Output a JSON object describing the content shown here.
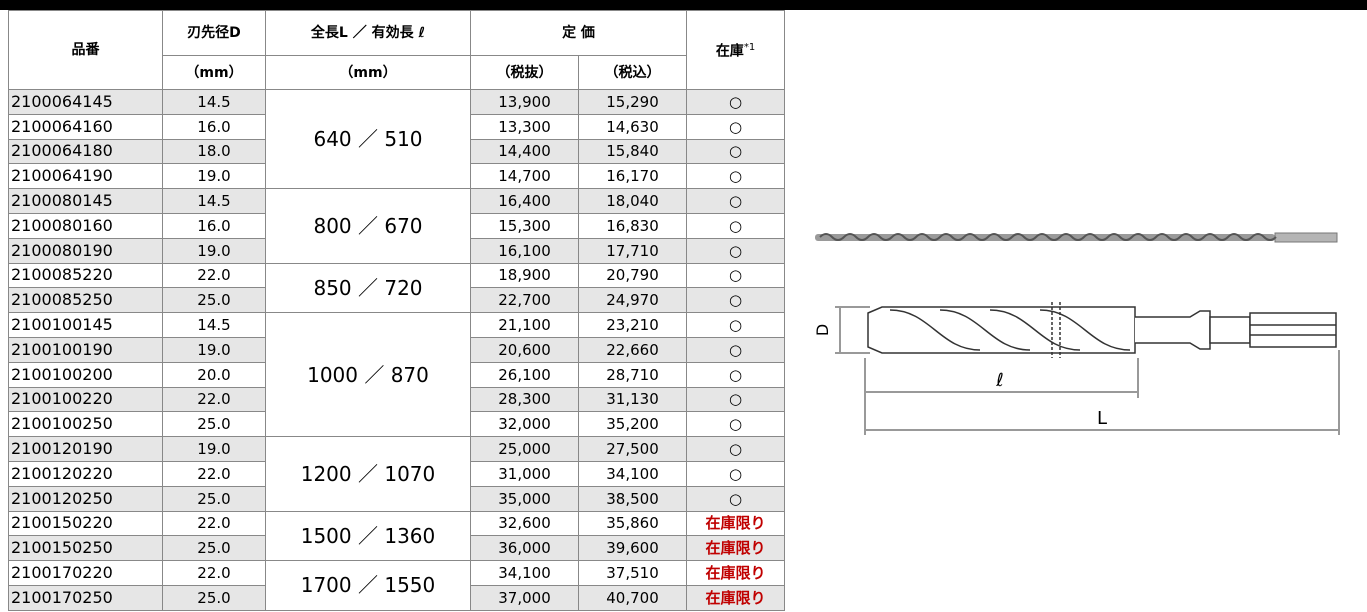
{
  "table": {
    "headers": {
      "part_no": "品番",
      "diameter": "刃先径D",
      "diameter_unit": "（mm）",
      "length": "全長L ／ 有効長 ℓ",
      "length_unit": "（mm）",
      "price": "定 価",
      "price_ex": "（税抜）",
      "price_in": "（税込）",
      "stock": "在庫",
      "stock_note": "*1"
    },
    "groups": [
      {
        "length": "640 ／ 510",
        "items": [
          [
            "2100064145",
            "14.5",
            "13,900",
            "15,290",
            "○"
          ],
          [
            "2100064160",
            "16.0",
            "13,300",
            "14,630",
            "○"
          ],
          [
            "2100064180",
            "18.0",
            "14,400",
            "15,840",
            "○"
          ],
          [
            "2100064190",
            "19.0",
            "14,700",
            "16,170",
            "○"
          ]
        ]
      },
      {
        "length": "800 ／ 670",
        "items": [
          [
            "2100080145",
            "14.5",
            "16,400",
            "18,040",
            "○"
          ],
          [
            "2100080160",
            "16.0",
            "15,300",
            "16,830",
            "○"
          ],
          [
            "2100080190",
            "19.0",
            "16,100",
            "17,710",
            "○"
          ]
        ]
      },
      {
        "length": "850 ／ 720",
        "items": [
          [
            "2100085220",
            "22.0",
            "18,900",
            "20,790",
            "○"
          ],
          [
            "2100085250",
            "25.0",
            "22,700",
            "24,970",
            "○"
          ]
        ]
      },
      {
        "length": "1000 ／ 870",
        "items": [
          [
            "2100100145",
            "14.5",
            "21,100",
            "23,210",
            "○"
          ],
          [
            "2100100190",
            "19.0",
            "20,600",
            "22,660",
            "○"
          ],
          [
            "2100100200",
            "20.0",
            "26,100",
            "28,710",
            "○"
          ],
          [
            "2100100220",
            "22.0",
            "28,300",
            "31,130",
            "○"
          ],
          [
            "2100100250",
            "25.0",
            "32,000",
            "35,200",
            "○"
          ]
        ]
      },
      {
        "length": "1200 ／ 1070",
        "items": [
          [
            "2100120190",
            "19.0",
            "25,000",
            "27,500",
            "○"
          ],
          [
            "2100120220",
            "22.0",
            "31,000",
            "34,100",
            "○"
          ],
          [
            "2100120250",
            "25.0",
            "35,000",
            "38,500",
            "○"
          ]
        ]
      },
      {
        "length": "1500 ／ 1360",
        "items": [
          [
            "2100150220",
            "22.0",
            "32,600",
            "35,860",
            "在庫限り"
          ],
          [
            "2100150250",
            "25.0",
            "36,000",
            "39,600",
            "在庫限り"
          ]
        ]
      },
      {
        "length": "1700 ／ 1550",
        "items": [
          [
            "2100170220",
            "22.0",
            "34,100",
            "37,510",
            "在庫限り"
          ],
          [
            "2100170250",
            "25.0",
            "37,000",
            "40,700",
            "在庫限り"
          ]
        ]
      }
    ]
  },
  "diagram": {
    "diameter_label": "D",
    "effective_label": "ℓ",
    "total_label": "L"
  }
}
